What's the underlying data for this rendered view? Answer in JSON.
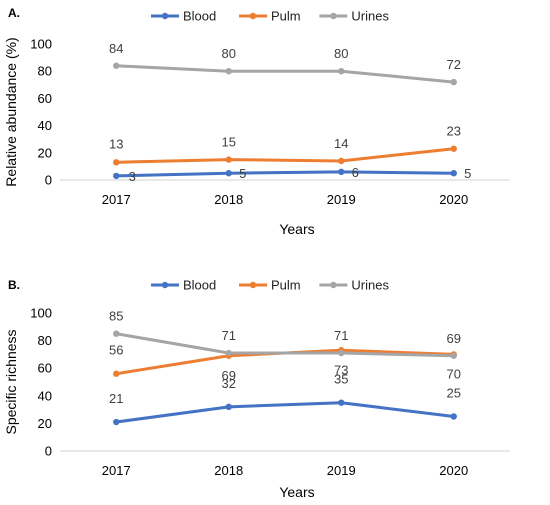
{
  "chart_data": [
    {
      "type": "line",
      "panel_label": "A.",
      "categories": [
        "2017",
        "2018",
        "2019",
        "2020"
      ],
      "series": [
        {
          "name": "Blood",
          "color": "#4472C4",
          "values": [
            3,
            5,
            6,
            5
          ],
          "labels": [
            "3",
            "5",
            "6",
            "5"
          ]
        },
        {
          "name": "Pulm",
          "color": "#ED7D31",
          "values": [
            13,
            15,
            14,
            23
          ],
          "labels": [
            "13",
            "15",
            "14",
            "23"
          ]
        },
        {
          "name": "Urines",
          "color": "#A5A5A5",
          "values": [
            84,
            80,
            80,
            72
          ],
          "labels": [
            "84",
            "80",
            "80",
            "72"
          ]
        }
      ],
      "xlabel": "Years",
      "ylabel": "Relative abundance (%)",
      "ylim": [
        0,
        100
      ],
      "yticks": [
        "0",
        "20",
        "40",
        "60",
        "80",
        "100"
      ],
      "grid": false,
      "legend": "top-center"
    },
    {
      "type": "line",
      "panel_label": "B.",
      "categories": [
        "2017",
        "2018",
        "2019",
        "2020"
      ],
      "series": [
        {
          "name": "Blood",
          "color": "#4472C4",
          "values": [
            21,
            32,
            35,
            25
          ],
          "labels": [
            "21",
            "32",
            "35",
            "25"
          ]
        },
        {
          "name": "Pulm",
          "color": "#ED7D31",
          "values": [
            56,
            69,
            73,
            70
          ],
          "labels": [
            "56",
            "69",
            "73",
            "70"
          ]
        },
        {
          "name": "Urines",
          "color": "#A5A5A5",
          "values": [
            85,
            71,
            71,
            69
          ],
          "labels": [
            "85",
            "71",
            "71",
            "69"
          ]
        }
      ],
      "xlabel": "Years",
      "ylabel": "Specific richness",
      "ylim": [
        0,
        100
      ],
      "yticks": [
        "0",
        "20",
        "40",
        "60",
        "80",
        "100"
      ],
      "grid": false,
      "legend": "top-center"
    }
  ]
}
